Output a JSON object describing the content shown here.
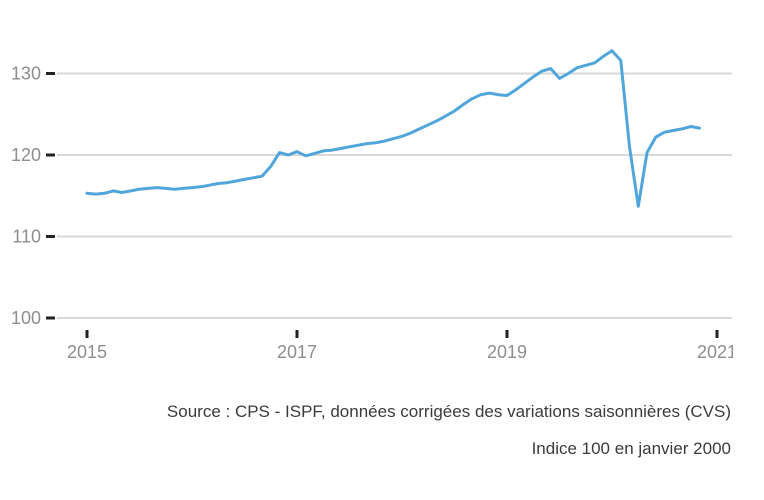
{
  "chart_data": {
    "type": "line",
    "title": "",
    "legend": "none",
    "grid": "horizontal-only",
    "line_color": "#50A6DB",
    "gridline_color": "#d9d9d9",
    "tick_mark_color": "#222222",
    "axis_label_color": "#8e8e8e",
    "y_ticks": [
      130,
      120,
      110,
      100
    ],
    "ylim": [
      100,
      130
    ],
    "x_tick_labels": [
      "2015",
      "2017",
      "2019",
      "2021"
    ],
    "x_start": "2015-01",
    "x_interval": "monthly",
    "values": [
      115.3,
      115.2,
      115.3,
      115.6,
      115.4,
      115.6,
      115.8,
      115.9,
      116.0,
      115.9,
      115.8,
      115.9,
      116.0,
      116.1,
      116.3,
      116.5,
      116.6,
      116.8,
      117.0,
      117.2,
      117.4,
      118.6,
      120.3,
      120.0,
      120.4,
      119.9,
      120.2,
      120.5,
      120.6,
      120.8,
      121.0,
      121.2,
      121.4,
      121.5,
      121.7,
      122.0,
      122.3,
      122.7,
      123.2,
      123.7,
      124.2,
      124.8,
      125.4,
      126.2,
      126.9,
      127.4,
      127.6,
      127.4,
      127.3,
      128.0,
      128.8,
      129.6,
      130.3,
      130.6,
      129.4,
      130.0,
      130.7,
      131.0,
      131.3,
      132.1,
      132.8,
      131.6,
      121.0,
      113.7,
      120.3,
      122.2,
      122.8,
      123.0,
      123.2,
      123.5,
      123.3
    ]
  },
  "footer": {
    "source": "Source : CPS - ISPF, données corrigées des variations saisonnières (CVS)",
    "note": "Indice 100 en janvier 2000"
  }
}
